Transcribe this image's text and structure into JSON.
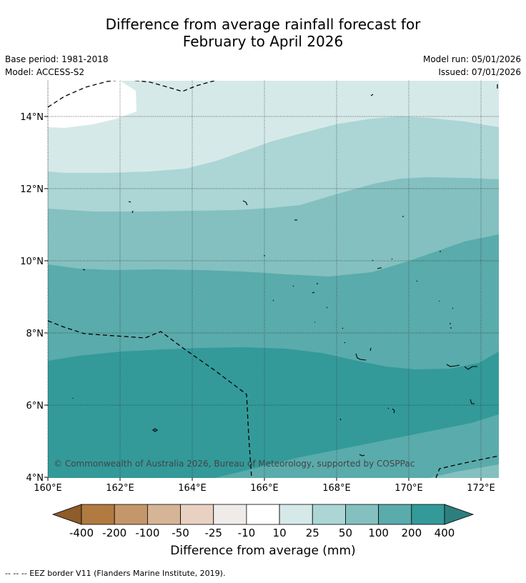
{
  "header": {
    "title_line1": "Difference from average rainfall forecast for",
    "title_line2": "February to April 2026",
    "base_period": "Base period: 1981-2018",
    "model": "Model: ACCESS-S2",
    "model_run": "Model run: 05/01/2026",
    "issued": "Issued: 07/01/2026"
  },
  "map": {
    "lon_ticks": [
      "160°E",
      "162°E",
      "164°E",
      "166°E",
      "168°E",
      "170°E",
      "172°E"
    ],
    "lat_ticks": [
      "14°N",
      "12°N",
      "10°N",
      "8°N",
      "6°N",
      "4°N"
    ],
    "copyright": "© Commonwealth of Australia 2026, Bureau of Meteorology, supported by COSPPac"
  },
  "legend": {
    "labels": [
      "-400",
      "-200",
      "-100",
      "-50",
      "-25",
      "-10",
      "10",
      "25",
      "50",
      "100",
      "200",
      "400"
    ],
    "colors": [
      "#8e5b2a",
      "#b07a41",
      "#c4966a",
      "#d6b496",
      "#e8d1c0",
      "#efebe8",
      "#ffffff",
      "#d6e9e9",
      "#acd5d5",
      "#84c0c0",
      "#5aabab",
      "#339a99",
      "#2d7f7e"
    ],
    "title": "Difference from average (mm)"
  },
  "footnote": "--  --  -- EEZ border V11 (Flanders Marine Institute, 2019)."
}
